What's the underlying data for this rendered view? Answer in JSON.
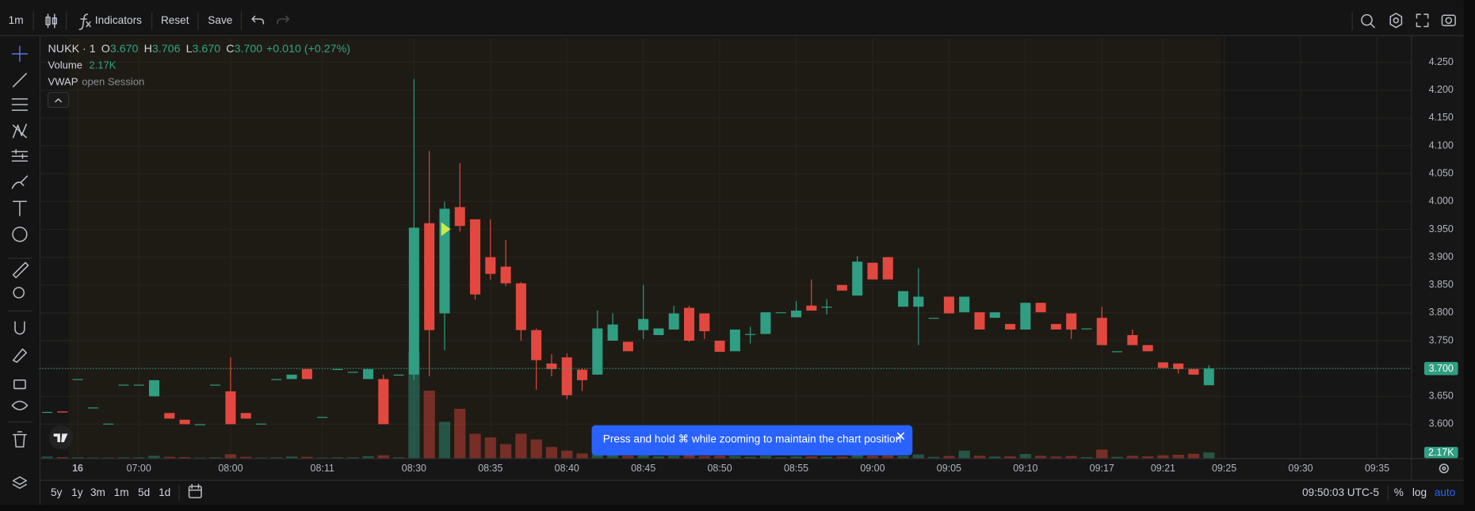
{
  "toolbar": {
    "interval": "1m",
    "indicators": "Indicators",
    "reset": "Reset",
    "save": "Save"
  },
  "legend": {
    "symbol": "NUKK · 1",
    "open_label": "O",
    "open": "3.670",
    "high_label": "H",
    "high": "3.706",
    "low_label": "L",
    "low": "3.670",
    "close_label": "C",
    "close": "3.700",
    "change": "+0.010 (+0.27%)",
    "volume_label": "Volume",
    "volume": "2.17K",
    "vwap": "VWAP",
    "vwap_params": "open Session"
  },
  "chart_data": {
    "type": "candlestick",
    "categories": [
      null,
      null,
      "16",
      null,
      null,
      null,
      "07:00",
      null,
      null,
      null,
      null,
      null,
      "08:00",
      null,
      null,
      null,
      null,
      null,
      "08:11",
      null,
      null,
      null,
      null,
      null,
      "08:30",
      null,
      null,
      null,
      null,
      "08:35",
      null,
      null,
      null,
      null,
      "08:40",
      null,
      null,
      null,
      null,
      "08:45",
      null,
      null,
      null,
      null,
      "08:50",
      null,
      null,
      null,
      null,
      "08:55",
      null,
      null,
      null,
      null,
      "09:00",
      null,
      null,
      null,
      null,
      "09:05",
      null,
      null,
      null,
      null,
      "09:10",
      null,
      null,
      null,
      null,
      "09:17",
      null,
      null,
      null,
      "09:21",
      null,
      null,
      null,
      "09:25",
      null,
      null,
      null,
      null,
      "09:30",
      null,
      null,
      null,
      null,
      "09:35",
      null
    ],
    "open": [
      3.622,
      3.623,
      3.681,
      3.63,
      3.601,
      3.671,
      3.671,
      3.65,
      3.62,
      3.608,
      3.6,
      3.671,
      3.659,
      3.62,
      3.601,
      3.681,
      3.681,
      3.699,
      3.613,
      3.699,
      3.694,
      3.681,
      3.681,
      3.689,
      3.689,
      3.961,
      3.799,
      3.99,
      3.968,
      3.9,
      3.883,
      3.853,
      3.769,
      3.709,
      3.72,
      3.698,
      3.689,
      3.75,
      3.748,
      3.769,
      3.76,
      3.77,
      3.809,
      3.799,
      3.75,
      3.731,
      3.762,
      3.762,
      3.801,
      3.792,
      3.813,
      3.811,
      3.85,
      3.831,
      3.89,
      3.9,
      3.811,
      3.811,
      3.791,
      3.829,
      3.801,
      3.801,
      3.791,
      3.78,
      3.77,
      3.818,
      3.78,
      3.799,
      3.772,
      3.791,
      3.731,
      3.76,
      3.742,
      3.711,
      3.709,
      3.699,
      3.67,
      null,
      null,
      null,
      null,
      null,
      null,
      null,
      null,
      null,
      null,
      null,
      null
    ],
    "high": [
      3.622,
      3.623,
      3.681,
      3.63,
      3.601,
      3.671,
      3.671,
      3.679,
      3.62,
      3.608,
      3.6,
      3.671,
      3.72,
      3.62,
      3.601,
      3.681,
      3.689,
      3.699,
      3.613,
      3.699,
      3.694,
      3.699,
      3.689,
      3.689,
      4.22,
      4.091,
      4.0,
      4.069,
      3.968,
      3.968,
      3.931,
      3.855,
      3.772,
      3.726,
      3.727,
      3.7,
      3.804,
      3.799,
      3.748,
      3.85,
      3.772,
      3.813,
      3.813,
      3.799,
      3.75,
      3.77,
      3.775,
      3.801,
      3.801,
      3.821,
      3.86,
      3.825,
      3.85,
      3.902,
      3.89,
      3.9,
      3.839,
      3.88,
      3.791,
      3.829,
      3.829,
      3.801,
      3.801,
      3.78,
      3.818,
      3.818,
      3.78,
      3.799,
      3.772,
      3.811,
      3.731,
      3.77,
      3.742,
      3.711,
      3.709,
      3.699,
      3.706,
      null,
      null,
      null,
      null,
      null,
      null,
      null,
      null,
      null,
      null,
      null,
      null
    ],
    "low": [
      3.622,
      3.621,
      3.681,
      3.63,
      3.601,
      3.671,
      3.671,
      3.65,
      3.61,
      3.6,
      3.6,
      3.671,
      3.6,
      3.61,
      3.601,
      3.681,
      3.681,
      3.681,
      3.613,
      3.699,
      3.694,
      3.681,
      3.6,
      3.689,
      3.68,
      3.686,
      3.733,
      3.946,
      3.824,
      3.86,
      3.848,
      3.75,
      3.662,
      3.686,
      3.645,
      3.66,
      3.689,
      3.75,
      3.731,
      3.753,
      3.76,
      3.77,
      3.748,
      3.753,
      3.73,
      3.731,
      3.745,
      3.762,
      3.801,
      3.792,
      3.804,
      3.797,
      3.84,
      3.831,
      3.86,
      3.86,
      3.811,
      3.742,
      3.791,
      3.799,
      3.801,
      3.77,
      3.791,
      3.77,
      3.77,
      3.801,
      3.77,
      3.753,
      3.772,
      3.742,
      3.731,
      3.742,
      3.731,
      3.701,
      3.691,
      3.689,
      3.67,
      null,
      null,
      null,
      null,
      null,
      null,
      null,
      null,
      null,
      null,
      null,
      null
    ],
    "close": [
      3.622,
      3.621,
      3.681,
      3.63,
      3.601,
      3.671,
      3.671,
      3.679,
      3.61,
      3.6,
      3.6,
      3.671,
      3.6,
      3.61,
      3.601,
      3.681,
      3.689,
      3.681,
      3.613,
      3.699,
      3.694,
      3.699,
      3.6,
      3.689,
      3.953,
      3.769,
      3.987,
      3.956,
      3.833,
      3.87,
      3.853,
      3.769,
      3.715,
      3.699,
      3.652,
      3.679,
      3.772,
      3.779,
      3.731,
      3.789,
      3.772,
      3.799,
      3.75,
      3.767,
      3.73,
      3.77,
      3.762,
      3.801,
      3.801,
      3.804,
      3.804,
      3.811,
      3.84,
      3.892,
      3.86,
      3.86,
      3.839,
      3.829,
      3.791,
      3.799,
      3.829,
      3.77,
      3.801,
      3.77,
      3.818,
      3.801,
      3.77,
      3.77,
      3.772,
      3.742,
      3.731,
      3.742,
      3.731,
      3.701,
      3.699,
      3.689,
      3.7,
      null,
      null,
      null,
      null,
      null,
      null,
      null,
      null,
      null,
      null,
      null,
      null
    ],
    "up_color": "#2f9e82",
    "down_color": "#e2483f",
    "volume": {
      "name": "Volume",
      "values": [
        600,
        400,
        300,
        200,
        200,
        300,
        300,
        900,
        500,
        400,
        200,
        300,
        1500,
        500,
        200,
        300,
        600,
        500,
        200,
        300,
        300,
        700,
        1100,
        300,
        41000,
        26000,
        14000,
        19000,
        9400,
        8000,
        5400,
        9400,
        7200,
        4300,
        2900,
        1800,
        1500,
        1200,
        900,
        1100,
        700,
        900,
        1300,
        800,
        900,
        800,
        500,
        900,
        300,
        600,
        700,
        500,
        600,
        1200,
        900,
        1000,
        800,
        1400,
        500,
        800,
        2900,
        900,
        600,
        700,
        1600,
        900,
        600,
        800,
        400,
        3300,
        500,
        900,
        700,
        1100,
        1300,
        1700,
        2170,
        null,
        null,
        null,
        null,
        null,
        null,
        null,
        null,
        null,
        null,
        null,
        null
      ],
      "ylim": [
        0,
        162000
      ],
      "last_label": "2.17K"
    },
    "last_price": {
      "value": 3.7,
      "label": "3.700"
    },
    "ylim": [
      3.539,
      4.294
    ],
    "yticks": [
      {
        "value": 3.6,
        "label": "3.600"
      },
      {
        "value": 3.65,
        "label": "3.650"
      },
      {
        "value": 3.7,
        "label": "3.700"
      },
      {
        "value": 3.75,
        "label": "3.750"
      },
      {
        "value": 3.8,
        "label": "3.800"
      },
      {
        "value": 3.85,
        "label": "3.850"
      },
      {
        "value": 3.9,
        "label": "3.900"
      },
      {
        "value": 3.95,
        "label": "3.950"
      },
      {
        "value": 4.0,
        "label": "4.000"
      },
      {
        "value": 4.05,
        "label": "4.050"
      },
      {
        "value": 4.1,
        "label": "4.100"
      },
      {
        "value": 4.15,
        "label": "4.150"
      },
      {
        "value": 4.2,
        "label": "4.200"
      },
      {
        "value": 4.25,
        "label": "4.250"
      }
    ],
    "grid": true,
    "log_scale": false
  },
  "notice": "Press and hold ⌘ while zooming to maintain the chart position",
  "bottom_bar": {
    "ranges": [
      "5y",
      "1y",
      "3m",
      "1m",
      "5d",
      "1d"
    ],
    "clock": "09:50:03 UTC-5",
    "percent": "%",
    "log": "log",
    "auto": "auto"
  }
}
